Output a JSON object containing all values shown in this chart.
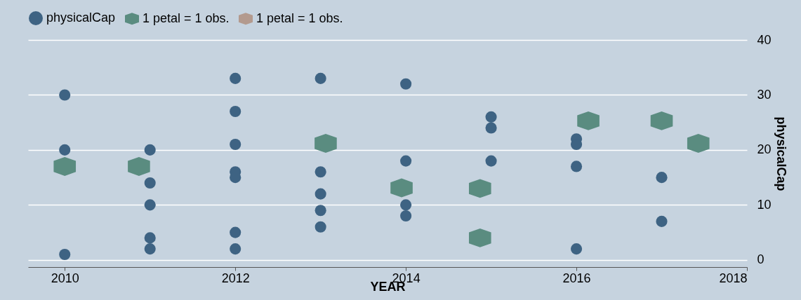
{
  "chart_data": {
    "type": "scatter",
    "xlabel": "YEAR",
    "ylabel": "physicalCap",
    "xlim": [
      2009.57,
      2018
    ],
    "xticks": [
      2010,
      2012,
      2014,
      2016,
      2018
    ],
    "ylim": [
      -1.3,
      40
    ],
    "yticks": [
      0,
      10,
      20,
      30,
      40
    ],
    "grid": "y",
    "legend": "top",
    "series": [
      {
        "name": "physicalCap",
        "color": "#3e6383",
        "marker": "circle",
        "x": [
          2010,
          2010,
          2010,
          2011,
          2011,
          2011,
          2011,
          2011,
          2012,
          2012,
          2012,
          2012,
          2012,
          2012,
          2012,
          2013,
          2013,
          2013,
          2013,
          2013,
          2014,
          2014,
          2014,
          2014,
          2015,
          2015,
          2015,
          2016,
          2016,
          2016,
          2016,
          2017,
          2017
        ],
        "values": [
          30,
          20,
          1,
          20,
          14,
          10,
          4,
          2,
          33,
          27,
          21,
          16,
          15,
          5,
          2,
          33,
          16,
          12,
          9,
          6,
          32,
          18,
          10,
          8,
          26,
          24,
          18,
          22,
          21,
          17,
          2,
          15,
          7
        ]
      },
      {
        "name": "1 petal = 1 obs.",
        "color": "#5a8c80",
        "x": [
          2010,
          2010.87,
          2013.06,
          2013.95,
          2014.87,
          2014.87,
          2016.14,
          2017.0,
          2017.43
        ],
        "values": [
          17,
          17,
          21.2,
          13.1,
          13,
          4,
          25.3,
          25.3,
          21.2
        ]
      },
      {
        "name": "1 petal = 1 obs.",
        "color": "#b39a8e"
      }
    ]
  }
}
